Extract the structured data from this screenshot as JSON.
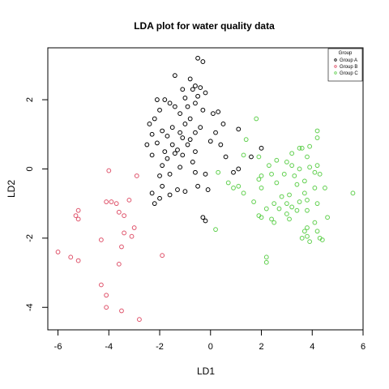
{
  "chart_data": {
    "type": "scatter",
    "title": "LDA plot for water quality data",
    "xlabel": "LD1",
    "ylabel": "LD2",
    "xlim": [
      -6.4,
      6.0
    ],
    "ylim": [
      -4.65,
      3.5
    ],
    "xticks": [
      -6,
      -4,
      -2,
      0,
      2,
      4,
      6
    ],
    "yticks": [
      -4,
      -2,
      0,
      2
    ],
    "grid": false,
    "legend": {
      "title": "Group",
      "placement": "top-right",
      "entries": [
        {
          "label": "Group A",
          "color": "#000000"
        },
        {
          "label": "Group B",
          "color": "#DF536B"
        },
        {
          "label": "Group C",
          "color": "#61D04F"
        }
      ]
    },
    "series": [
      {
        "name": "Group A",
        "color": "#000000",
        "points": [
          [
            -0.5,
            3.2
          ],
          [
            -0.3,
            3.1
          ],
          [
            -1.4,
            2.7
          ],
          [
            -0.8,
            2.6
          ],
          [
            -0.6,
            2.4
          ],
          [
            -0.4,
            2.35
          ],
          [
            -0.7,
            2.3
          ],
          [
            -1.1,
            2.3
          ],
          [
            -0.2,
            2.2
          ],
          [
            -0.5,
            2.1
          ],
          [
            -1.0,
            2.05
          ],
          [
            -1.8,
            2.0
          ],
          [
            -2.1,
            2.0
          ],
          [
            -1.6,
            1.9
          ],
          [
            -0.6,
            1.9
          ],
          [
            -1.4,
            1.8
          ],
          [
            -0.9,
            1.8
          ],
          [
            -2.0,
            1.7
          ],
          [
            -0.3,
            1.7
          ],
          [
            0.3,
            1.65
          ],
          [
            -1.2,
            1.6
          ],
          [
            0.1,
            1.6
          ],
          [
            -2.2,
            1.45
          ],
          [
            -0.8,
            1.45
          ],
          [
            -1.0,
            1.3
          ],
          [
            -2.4,
            1.3
          ],
          [
            -1.5,
            1.2
          ],
          [
            -0.4,
            1.2
          ],
          [
            0.5,
            1.3
          ],
          [
            -1.9,
            1.1
          ],
          [
            -1.2,
            1.05
          ],
          [
            -0.6,
            1.05
          ],
          [
            0.2,
            1.05
          ],
          [
            1.1,
            1.15
          ],
          [
            -2.3,
            1.0
          ],
          [
            -1.7,
            0.95
          ],
          [
            -1.1,
            0.9
          ],
          [
            -0.8,
            0.85
          ],
          [
            0.0,
            0.8
          ],
          [
            -2.1,
            0.75
          ],
          [
            -1.5,
            0.7
          ],
          [
            -0.9,
            0.7
          ],
          [
            0.4,
            0.7
          ],
          [
            -2.5,
            0.7
          ],
          [
            -1.3,
            0.55
          ],
          [
            -1.8,
            0.5
          ],
          [
            -0.6,
            0.5
          ],
          [
            -1.4,
            0.45
          ],
          [
            -1.1,
            0.4
          ],
          [
            -2.3,
            0.4
          ],
          [
            0.6,
            0.35
          ],
          [
            -1.7,
            0.3
          ],
          [
            -0.7,
            0.2
          ],
          [
            -1.9,
            0.1
          ],
          [
            -1.2,
            0.05
          ],
          [
            -0.6,
            -0.1
          ],
          [
            -1.6,
            -0.15
          ],
          [
            -2.0,
            -0.2
          ],
          [
            0.9,
            -0.1
          ],
          [
            2.0,
            0.6
          ],
          [
            1.6,
            0.35
          ],
          [
            1.1,
            0.0
          ],
          [
            -0.2,
            -0.15
          ],
          [
            -0.5,
            -0.5
          ],
          [
            -1.9,
            -0.5
          ],
          [
            -2.3,
            -0.7
          ],
          [
            -1.3,
            -0.6
          ],
          [
            -1.0,
            -0.65
          ],
          [
            -0.1,
            -0.6
          ],
          [
            -1.6,
            -0.75
          ],
          [
            -2.0,
            -0.85
          ],
          [
            -2.2,
            -1.0
          ],
          [
            -0.3,
            -1.4
          ],
          [
            -0.2,
            -1.5
          ]
        ]
      },
      {
        "name": "Group B",
        "color": "#DF536B",
        "points": [
          [
            -4.0,
            -0.05
          ],
          [
            -2.9,
            -0.2
          ],
          [
            -4.1,
            -0.95
          ],
          [
            -3.9,
            -0.95
          ],
          [
            -3.7,
            -1.0
          ],
          [
            -3.2,
            -0.9
          ],
          [
            -5.2,
            -1.2
          ],
          [
            -5.3,
            -1.35
          ],
          [
            -5.2,
            -1.45
          ],
          [
            -3.6,
            -1.25
          ],
          [
            -3.4,
            -1.35
          ],
          [
            -3.0,
            -1.7
          ],
          [
            -3.4,
            -1.85
          ],
          [
            -4.3,
            -2.05
          ],
          [
            -3.1,
            -1.95
          ],
          [
            -3.5,
            -2.25
          ],
          [
            -6.0,
            -2.4
          ],
          [
            -5.5,
            -2.55
          ],
          [
            -5.2,
            -2.65
          ],
          [
            -3.6,
            -2.75
          ],
          [
            -1.9,
            -2.5
          ],
          [
            -4.3,
            -3.35
          ],
          [
            -4.1,
            -3.65
          ],
          [
            -3.5,
            -4.1
          ],
          [
            -4.1,
            -4.0
          ],
          [
            -2.8,
            -4.35
          ]
        ]
      },
      {
        "name": "Group C",
        "color": "#61D04F",
        "points": [
          [
            1.8,
            1.45
          ],
          [
            1.4,
            0.85
          ],
          [
            3.9,
            0.65
          ],
          [
            4.2,
            1.1
          ],
          [
            4.2,
            0.9
          ],
          [
            3.8,
            0.35
          ],
          [
            3.5,
            0.6
          ],
          [
            3.6,
            0.6
          ],
          [
            3.2,
            0.45
          ],
          [
            1.9,
            0.35
          ],
          [
            2.6,
            0.25
          ],
          [
            3.0,
            0.2
          ],
          [
            3.2,
            0.1
          ],
          [
            3.5,
            0.0
          ],
          [
            2.3,
            0.1
          ],
          [
            3.9,
            0.05
          ],
          [
            4.2,
            0.1
          ],
          [
            1.3,
            0.4
          ],
          [
            4.1,
            -0.1
          ],
          [
            4.3,
            -0.15
          ],
          [
            3.3,
            -0.2
          ],
          [
            2.9,
            -0.15
          ],
          [
            1.9,
            -0.3
          ],
          [
            3.7,
            -0.35
          ],
          [
            0.3,
            -0.1
          ],
          [
            2.0,
            -0.2
          ],
          [
            2.4,
            -0.15
          ],
          [
            2.6,
            -0.4
          ],
          [
            3.4,
            -0.45
          ],
          [
            4.1,
            -0.55
          ],
          [
            4.5,
            -0.55
          ],
          [
            1.1,
            -0.5
          ],
          [
            0.7,
            -0.4
          ],
          [
            2.0,
            -0.55
          ],
          [
            3.7,
            -0.7
          ],
          [
            2.8,
            -0.8
          ],
          [
            3.1,
            -0.75
          ],
          [
            5.6,
            -0.7
          ],
          [
            1.3,
            -0.7
          ],
          [
            0.9,
            -0.55
          ],
          [
            3.5,
            -0.95
          ],
          [
            3.8,
            -0.9
          ],
          [
            1.7,
            -0.95
          ],
          [
            3.0,
            -1.0
          ],
          [
            4.2,
            -1.0
          ],
          [
            2.5,
            -1.0
          ],
          [
            2.7,
            -1.15
          ],
          [
            3.2,
            -1.1
          ],
          [
            2.2,
            -1.15
          ],
          [
            3.4,
            -1.2
          ],
          [
            3.8,
            -1.2
          ],
          [
            2.0,
            -1.4
          ],
          [
            3.0,
            -1.3
          ],
          [
            4.6,
            -1.4
          ],
          [
            1.9,
            -1.35
          ],
          [
            2.4,
            -1.45
          ],
          [
            2.5,
            -1.55
          ],
          [
            3.1,
            -1.45
          ],
          [
            4.1,
            -1.55
          ],
          [
            3.8,
            -1.7
          ],
          [
            0.2,
            -1.75
          ],
          [
            3.7,
            -1.8
          ],
          [
            4.2,
            -1.8
          ],
          [
            3.8,
            -1.95
          ],
          [
            3.6,
            -2.0
          ],
          [
            4.3,
            -2.0
          ],
          [
            4.4,
            -2.05
          ],
          [
            3.9,
            -2.1
          ],
          [
            2.2,
            -2.55
          ],
          [
            2.2,
            -2.7
          ]
        ]
      }
    ]
  }
}
